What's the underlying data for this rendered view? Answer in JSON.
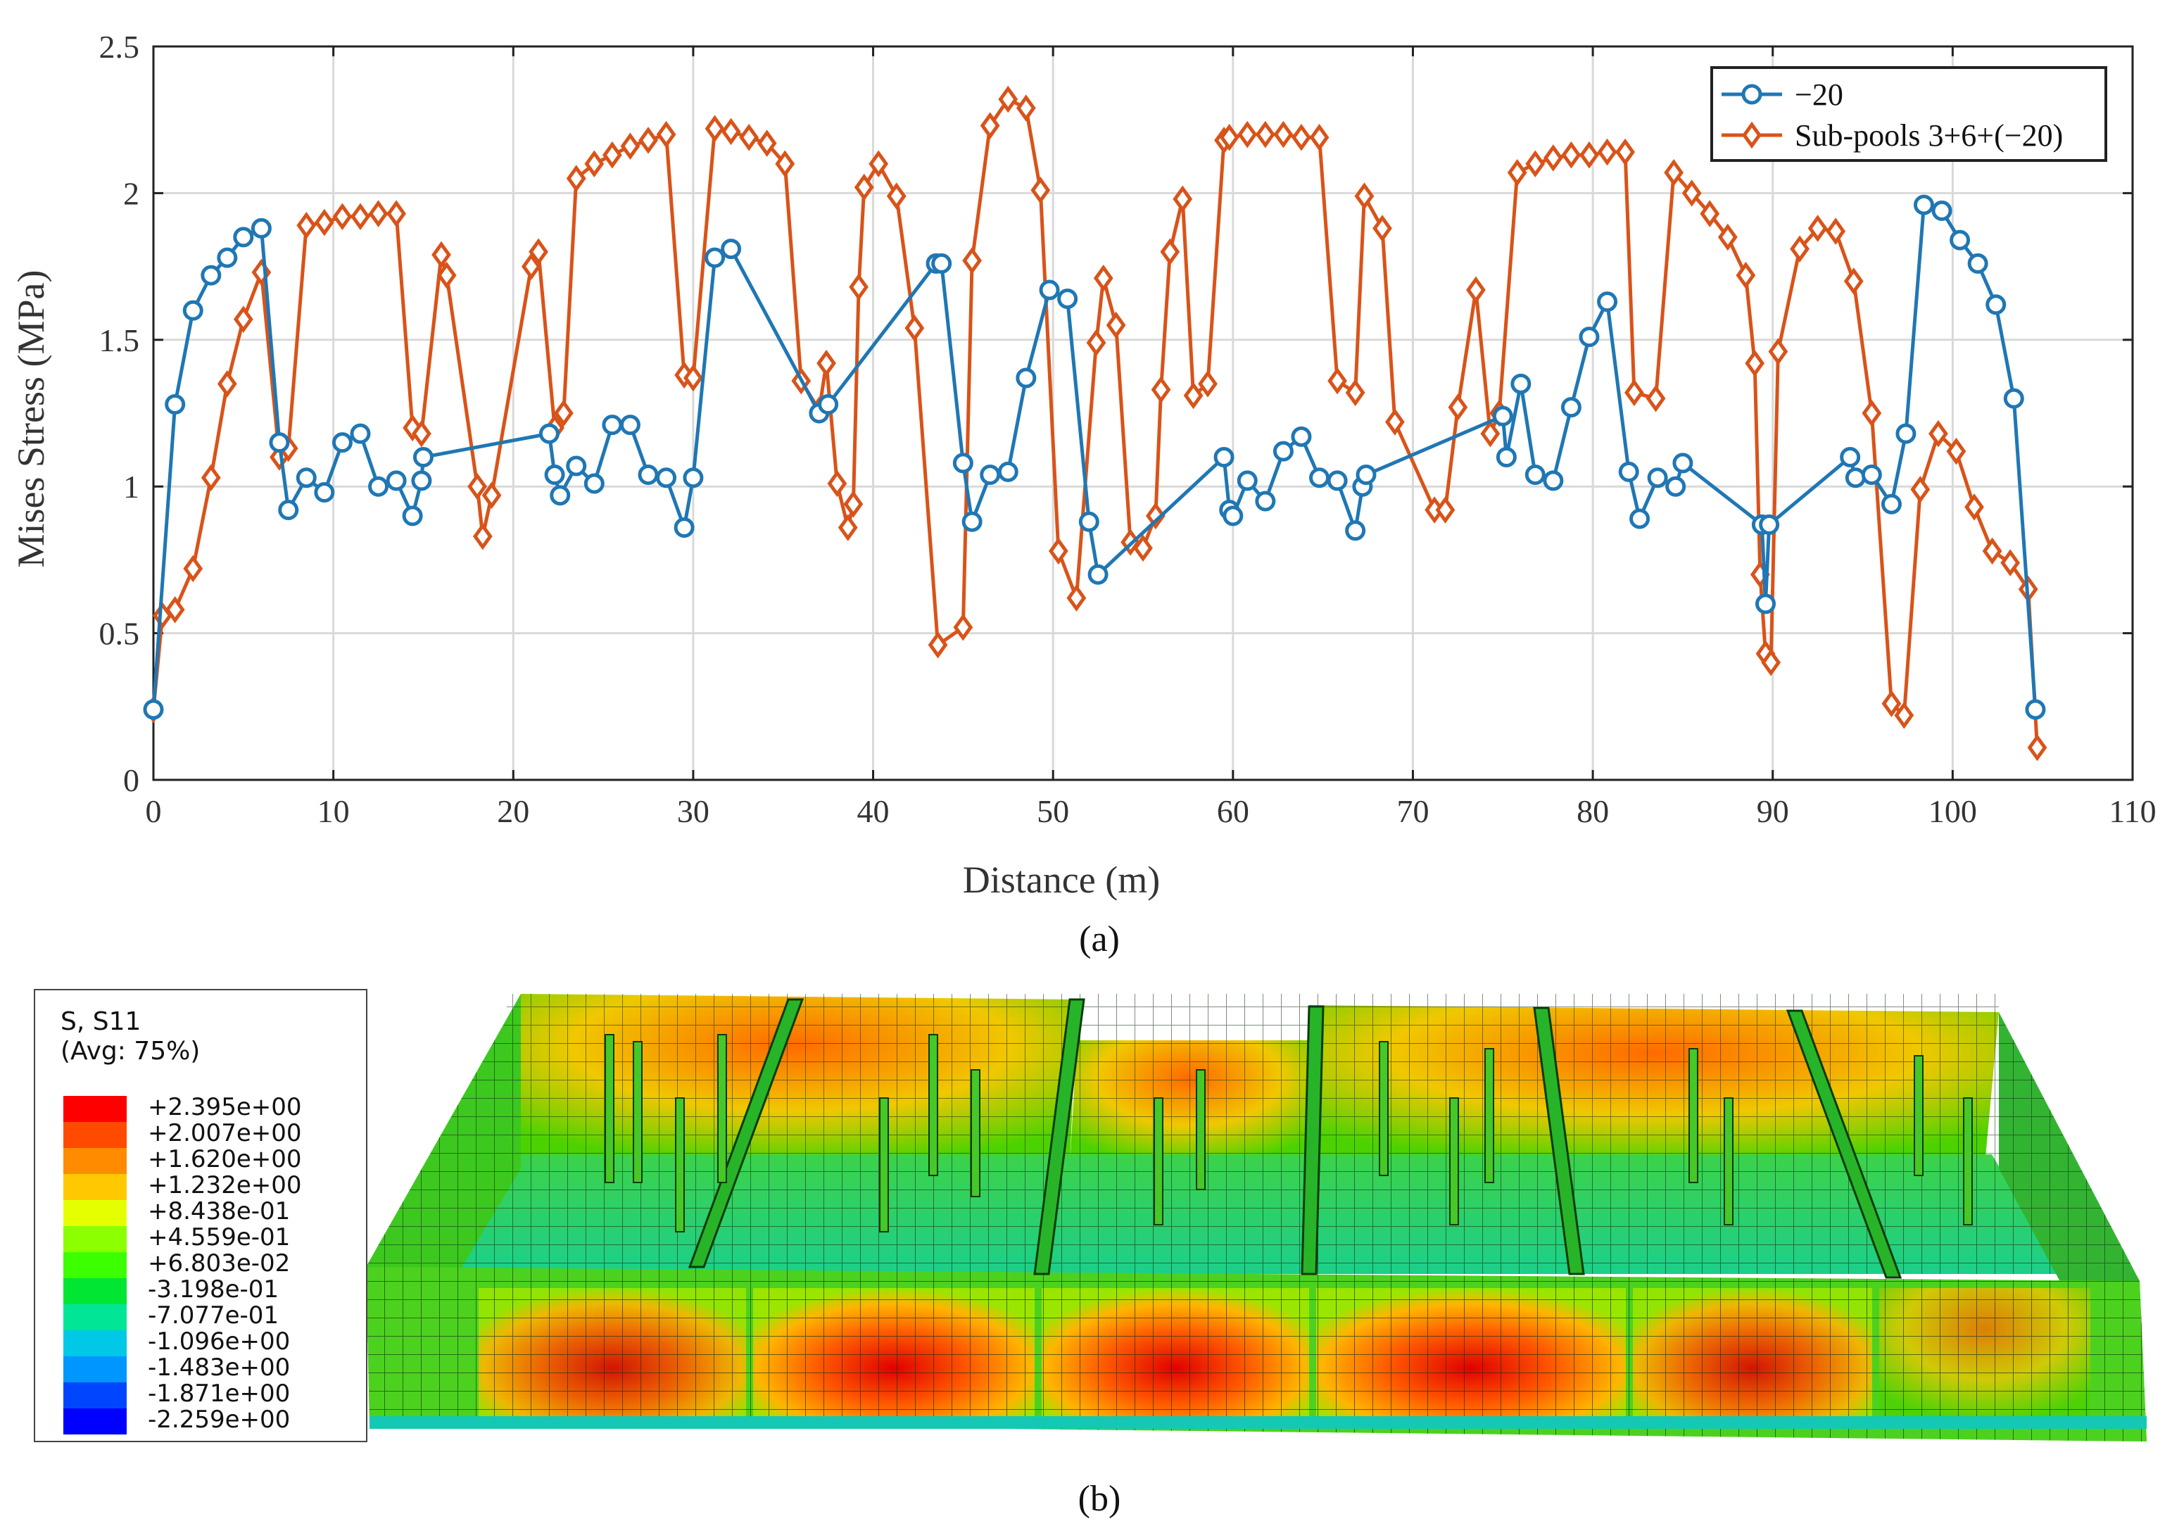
{
  "chart_data": {
    "type": "line",
    "title": "",
    "xlabel": "Distance (m)",
    "ylabel": "Mises Stress (MPa)",
    "xlim": [
      0,
      110
    ],
    "ylim": [
      0,
      2.5
    ],
    "xticks": [
      0,
      10,
      20,
      30,
      40,
      50,
      60,
      70,
      80,
      90,
      100,
      110
    ],
    "yticks": [
      0,
      0.5,
      1,
      1.5,
      2,
      2.5
    ],
    "xtick_labels": [
      "0",
      "10",
      "20",
      "30",
      "40",
      "50",
      "60",
      "70",
      "80",
      "90",
      "100",
      "110"
    ],
    "ytick_labels": [
      "0",
      "0.5",
      "1",
      "1.5",
      "2",
      "2.5"
    ],
    "grid": true,
    "legend_position": "top-right",
    "series": [
      {
        "name": "−20",
        "color": "#1f77b4",
        "marker": "circle",
        "x": [
          0,
          1.2,
          2.2,
          3.2,
          4.1,
          5.0,
          6.0,
          7.0,
          7.5,
          8.5,
          9.5,
          10.5,
          11.5,
          12.5,
          13.5,
          14.4,
          14.9,
          15.0,
          22.0,
          22.3,
          22.6,
          23.5,
          24.5,
          25.5,
          26.5,
          27.5,
          28.5,
          29.5,
          30.0,
          31.2,
          32.1,
          37.0,
          37.5,
          43.5,
          43.8,
          45.0,
          45.5,
          46.5,
          47.5,
          48.5,
          49.8,
          50.8,
          52.0,
          52.5,
          59.5,
          59.8,
          60.0,
          60.8,
          61.8,
          62.8,
          63.8,
          64.8,
          65.8,
          66.8,
          67.2,
          67.4,
          75.0,
          75.2,
          76.0,
          76.8,
          77.8,
          78.8,
          79.8,
          80.8,
          82.0,
          82.6,
          83.6,
          84.6,
          85.0,
          89.4,
          89.6,
          89.8,
          94.3,
          94.6,
          95.5,
          96.6,
          97.4,
          98.4,
          99.4,
          100.4,
          101.4,
          102.4,
          103.4,
          104.6
        ],
        "y": [
          0.24,
          1.28,
          1.6,
          1.72,
          1.78,
          1.85,
          1.88,
          1.15,
          0.92,
          1.03,
          0.98,
          1.15,
          1.18,
          1.0,
          1.02,
          0.9,
          1.02,
          1.1,
          1.18,
          1.04,
          0.97,
          1.07,
          1.01,
          1.21,
          1.21,
          1.04,
          1.03,
          0.86,
          1.03,
          1.78,
          1.81,
          1.25,
          1.28,
          1.76,
          1.76,
          1.08,
          0.88,
          1.04,
          1.05,
          1.37,
          1.67,
          1.64,
          0.88,
          0.7,
          1.1,
          0.92,
          0.9,
          1.02,
          0.95,
          1.12,
          1.17,
          1.03,
          1.02,
          0.85,
          1.0,
          1.04,
          1.24,
          1.1,
          1.35,
          1.04,
          1.02,
          1.27,
          1.51,
          1.63,
          1.05,
          0.89,
          1.03,
          1.0,
          1.08,
          0.87,
          0.6,
          0.87,
          1.1,
          1.03,
          1.04,
          0.94,
          1.18,
          1.96,
          1.94,
          1.84,
          1.76,
          1.62,
          1.3,
          0.24
        ]
      },
      {
        "name": "Sub-pools 3+6+(−20)",
        "color": "#d95319",
        "marker": "diamond",
        "x": [
          0,
          0.5,
          1.2,
          2.2,
          3.2,
          4.1,
          5.0,
          6.0,
          7.0,
          7.5,
          8.5,
          9.5,
          10.5,
          11.5,
          12.5,
          13.5,
          14.4,
          14.9,
          16.0,
          16.3,
          18.0,
          18.3,
          18.8,
          21.0,
          21.4,
          22.3,
          22.8,
          23.5,
          24.5,
          25.5,
          26.5,
          27.5,
          28.5,
          29.5,
          30.0,
          31.2,
          32.1,
          33.1,
          34.1,
          35.1,
          36.0,
          37.0,
          37.4,
          38.0,
          38.6,
          38.9,
          39.2,
          39.5,
          40.3,
          41.3,
          42.3,
          43.6,
          45.0,
          45.5,
          46.5,
          47.5,
          48.5,
          49.3,
          50.3,
          51.3,
          52.4,
          52.8,
          53.5,
          54.3,
          55.0,
          55.7,
          56.0,
          56.5,
          57.2,
          57.8,
          58.6,
          59.5,
          59.8,
          60.8,
          61.8,
          62.8,
          63.8,
          64.8,
          65.8,
          66.8,
          67.3,
          68.3,
          69.0,
          71.2,
          71.8,
          72.5,
          73.5,
          74.3,
          74.8,
          75.8,
          76.8,
          77.8,
          78.8,
          79.8,
          80.8,
          81.8,
          82.3,
          83.5,
          84.5,
          85.5,
          86.5,
          87.5,
          88.5,
          89.0,
          89.3,
          89.6,
          89.9,
          90.3,
          91.5,
          92.5,
          93.5,
          94.5,
          95.5,
          96.6,
          97.3,
          98.2,
          99.2,
          100.2,
          101.2,
          102.2,
          103.2,
          104.2,
          104.7
        ],
        "y": [
          0.24,
          0.56,
          0.58,
          0.72,
          1.03,
          1.35,
          1.57,
          1.73,
          1.1,
          1.13,
          1.89,
          1.9,
          1.92,
          1.92,
          1.93,
          1.93,
          1.2,
          1.18,
          1.79,
          1.72,
          1.0,
          0.83,
          0.97,
          1.75,
          1.8,
          1.2,
          1.25,
          2.05,
          2.1,
          2.13,
          2.16,
          2.18,
          2.2,
          1.38,
          1.37,
          2.22,
          2.21,
          2.19,
          2.17,
          2.1,
          1.36,
          1.26,
          1.42,
          1.01,
          0.86,
          0.94,
          1.68,
          2.02,
          2.1,
          1.99,
          1.54,
          0.46,
          0.52,
          1.77,
          2.23,
          2.32,
          2.29,
          2.01,
          0.78,
          0.62,
          1.49,
          1.71,
          1.55,
          0.81,
          0.79,
          0.9,
          1.33,
          1.8,
          1.98,
          1.31,
          1.35,
          2.18,
          2.19,
          2.2,
          2.2,
          2.2,
          2.19,
          2.19,
          1.36,
          1.32,
          1.99,
          1.88,
          1.22,
          0.92,
          0.92,
          1.27,
          1.67,
          1.18,
          1.25,
          2.07,
          2.1,
          2.12,
          2.13,
          2.13,
          2.14,
          2.14,
          1.32,
          1.3,
          2.07,
          2.0,
          1.93,
          1.85,
          1.72,
          1.42,
          0.7,
          0.43,
          0.4,
          1.46,
          1.81,
          1.88,
          1.87,
          1.7,
          1.25,
          0.26,
          0.22,
          0.99,
          1.18,
          1.12,
          0.93,
          0.78,
          0.74,
          0.65,
          0.11
        ]
      }
    ]
  },
  "panel_labels": {
    "a": "(a)",
    "b": "(b)"
  },
  "contour_legend": {
    "title_line1": "S, S11",
    "title_line2": "(Avg: 75%)",
    "entries": [
      {
        "label": "+2.395e+00",
        "color": "#ff0000"
      },
      {
        "label": "+2.007e+00",
        "color": "#ff4a00"
      },
      {
        "label": "+1.620e+00",
        "color": "#ff8c00"
      },
      {
        "label": "+1.232e+00",
        "color": "#ffc800"
      },
      {
        "label": "+8.438e-01",
        "color": "#e6ff00"
      },
      {
        "label": "+4.559e-01",
        "color": "#8cff00"
      },
      {
        "label": "+6.803e-02",
        "color": "#3cff00"
      },
      {
        "label": "-3.198e-01",
        "color": "#00e632"
      },
      {
        "label": "-7.077e-01",
        "color": "#00e696"
      },
      {
        "label": "-1.096e+00",
        "color": "#00c8e6"
      },
      {
        "label": "-1.483e+00",
        "color": "#0096ff"
      },
      {
        "label": "-1.871e+00",
        "color": "#0046ff"
      },
      {
        "label": "-2.259e+00",
        "color": "#0000ff"
      }
    ]
  }
}
